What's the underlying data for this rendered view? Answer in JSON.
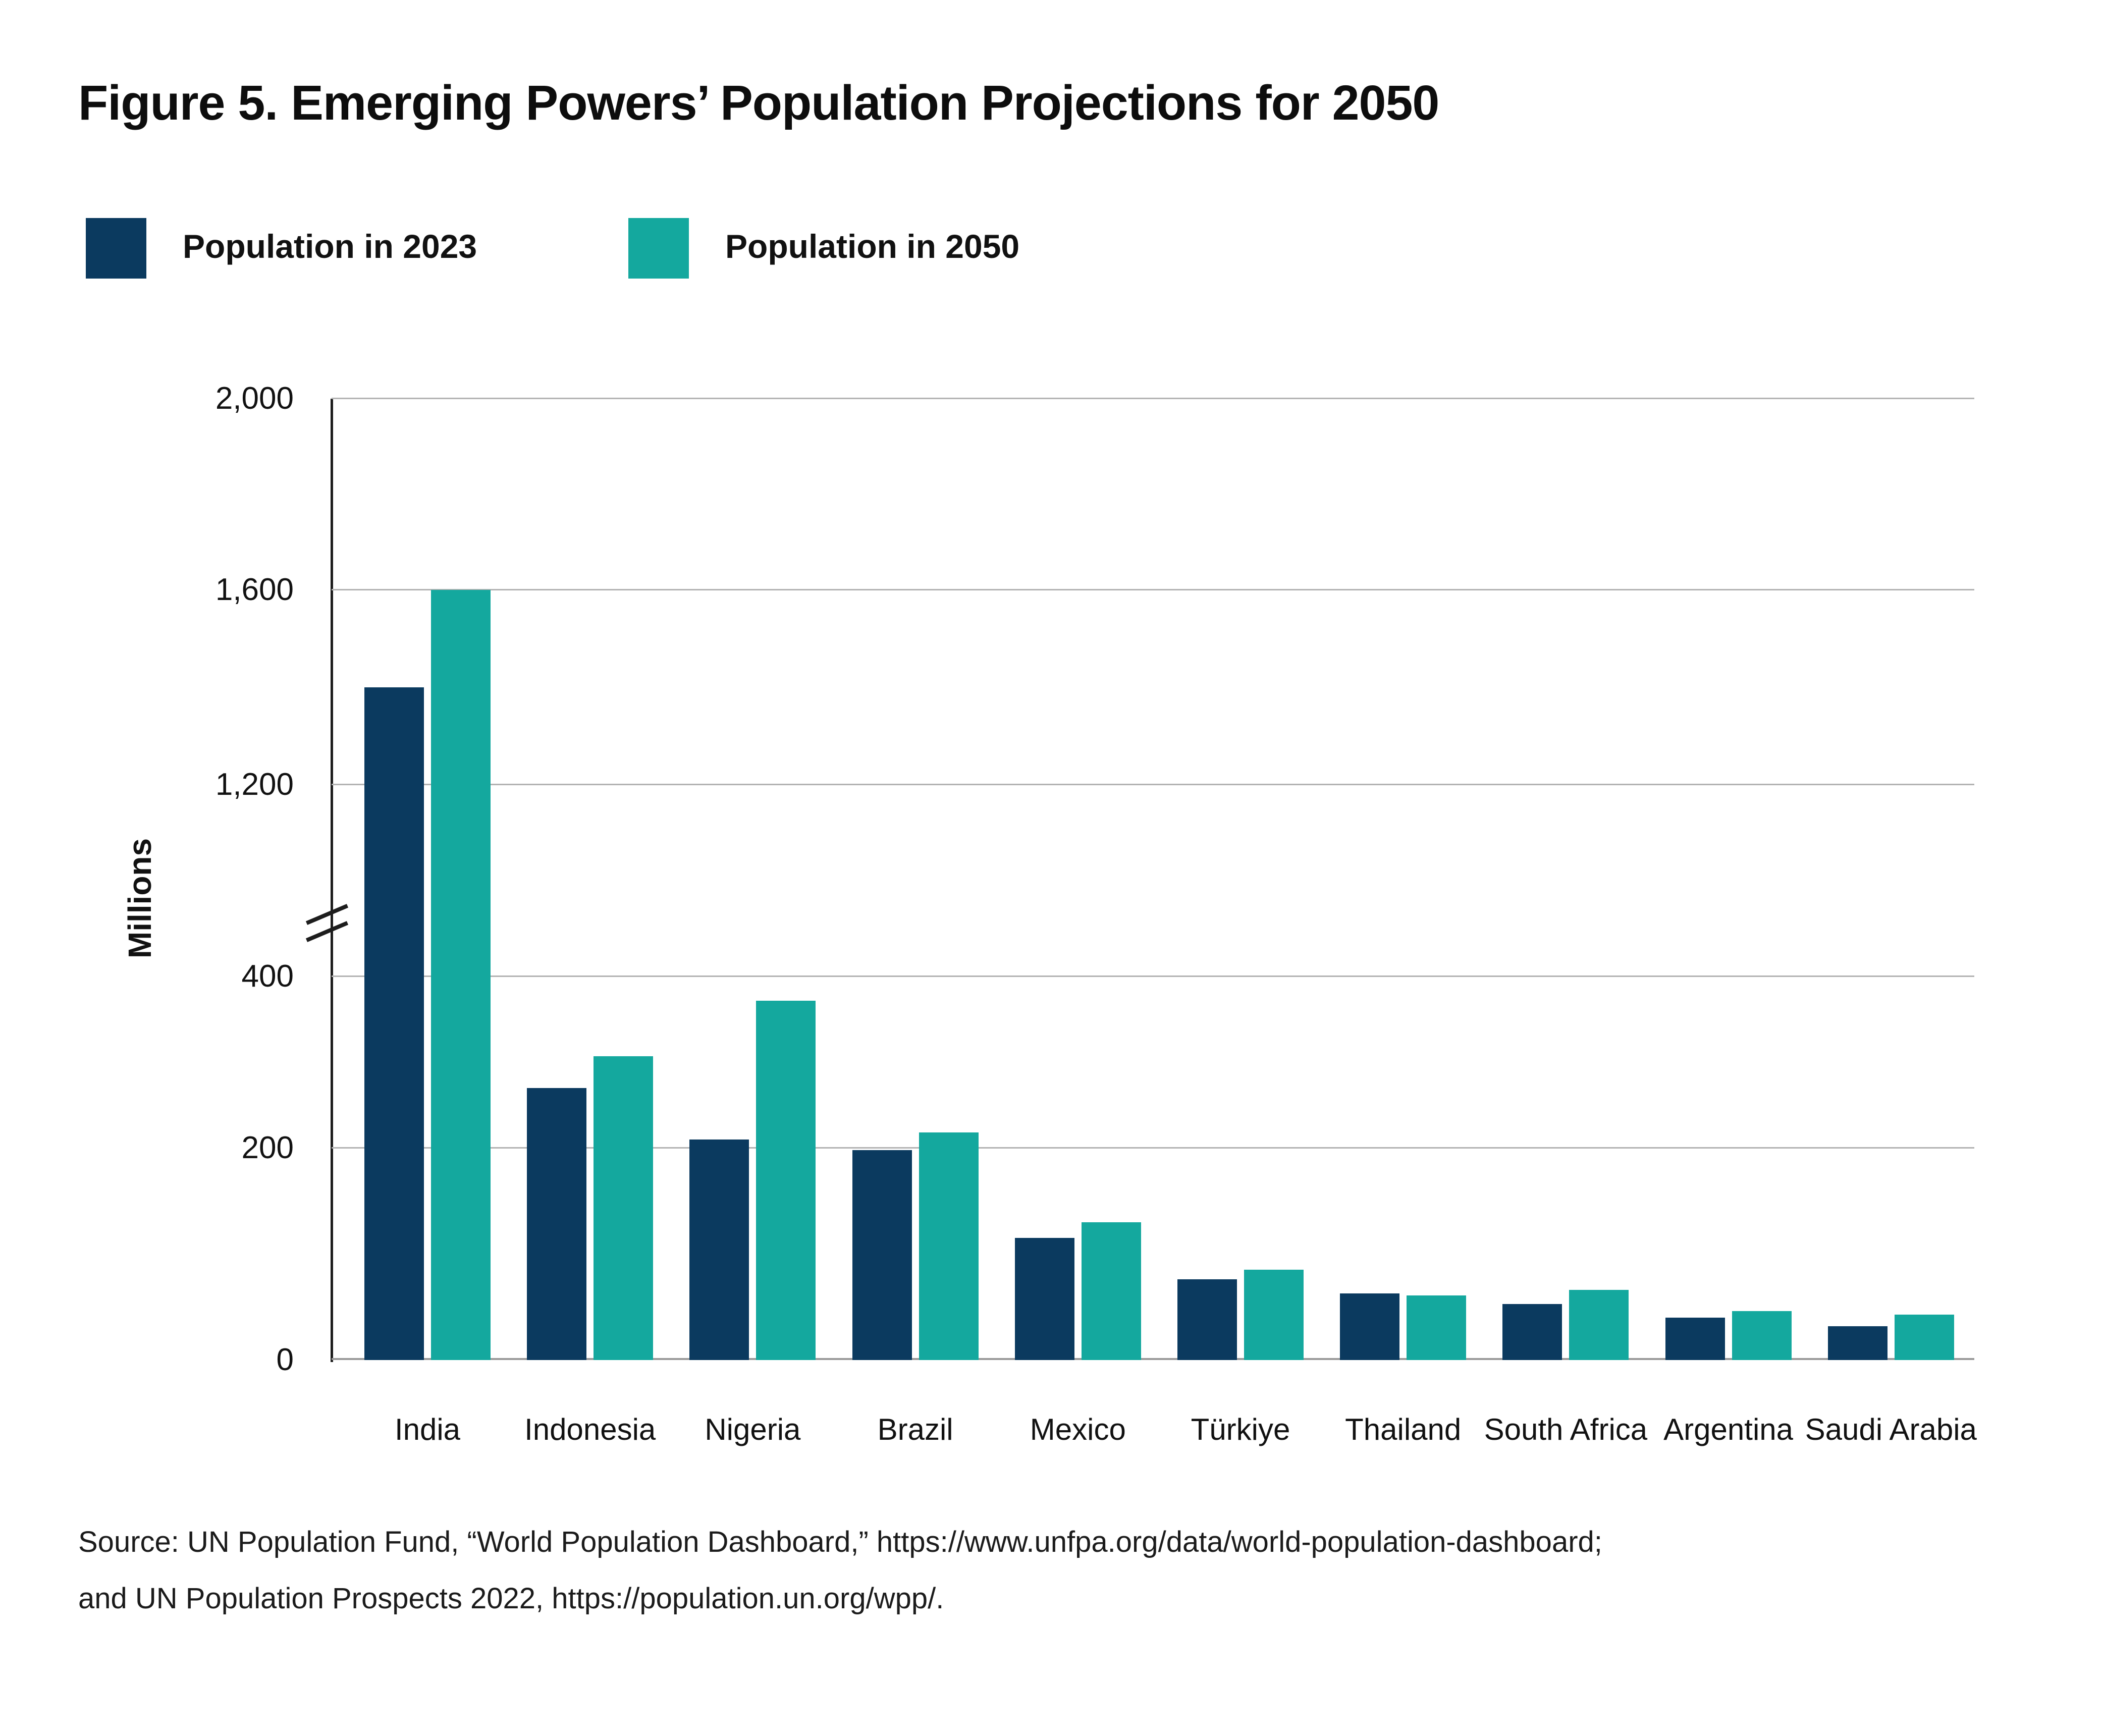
{
  "figure": {
    "title": "Figure 5. Emerging Powers’ Population Projections for 2050"
  },
  "legend": [
    {
      "label": "Population in 2023",
      "color": "#0b3a5f"
    },
    {
      "label": "Population in 2050",
      "color": "#14a89e"
    }
  ],
  "chart_data": {
    "type": "bar",
    "title": "Figure 5. Emerging Powers’ Population Projections for 2050",
    "ylabel": "Millions",
    "xlabel": "",
    "categories": [
      "India",
      "Indonesia",
      "Nigeria",
      "Brazil",
      "Mexico",
      "Türkiye",
      "Thailand",
      "South Africa",
      "Argentina",
      "Saudi Arabia"
    ],
    "series": [
      {
        "name": "Population in 2023",
        "color": "#0b3a5f",
        "values": [
          1400,
          270,
          210,
          198,
          115,
          76,
          63,
          53,
          40,
          32
        ]
      },
      {
        "name": "Population in 2050",
        "color": "#14a89e",
        "values": [
          1600,
          307,
          372,
          218,
          130,
          85,
          61,
          66,
          46,
          43
        ]
      }
    ],
    "y_axis": {
      "unit": "millions",
      "tick_values": [
        0,
        200,
        400,
        1200,
        1600,
        2000
      ],
      "tick_labels": [
        "0",
        "200",
        "400",
        "1,200",
        "1,600",
        "2,000"
      ],
      "broken_axis": true,
      "break_between": [
        400,
        1200
      ],
      "grid": true
    },
    "legend_position": "top-left"
  },
  "source": {
    "line1": "Source: UN Population Fund, “World Population Dashboard,” https://www.unfpa.org/data/world-population-dashboard;",
    "line2": "and UN Population Prospects 2022, https://population.un.org/wpp/."
  }
}
